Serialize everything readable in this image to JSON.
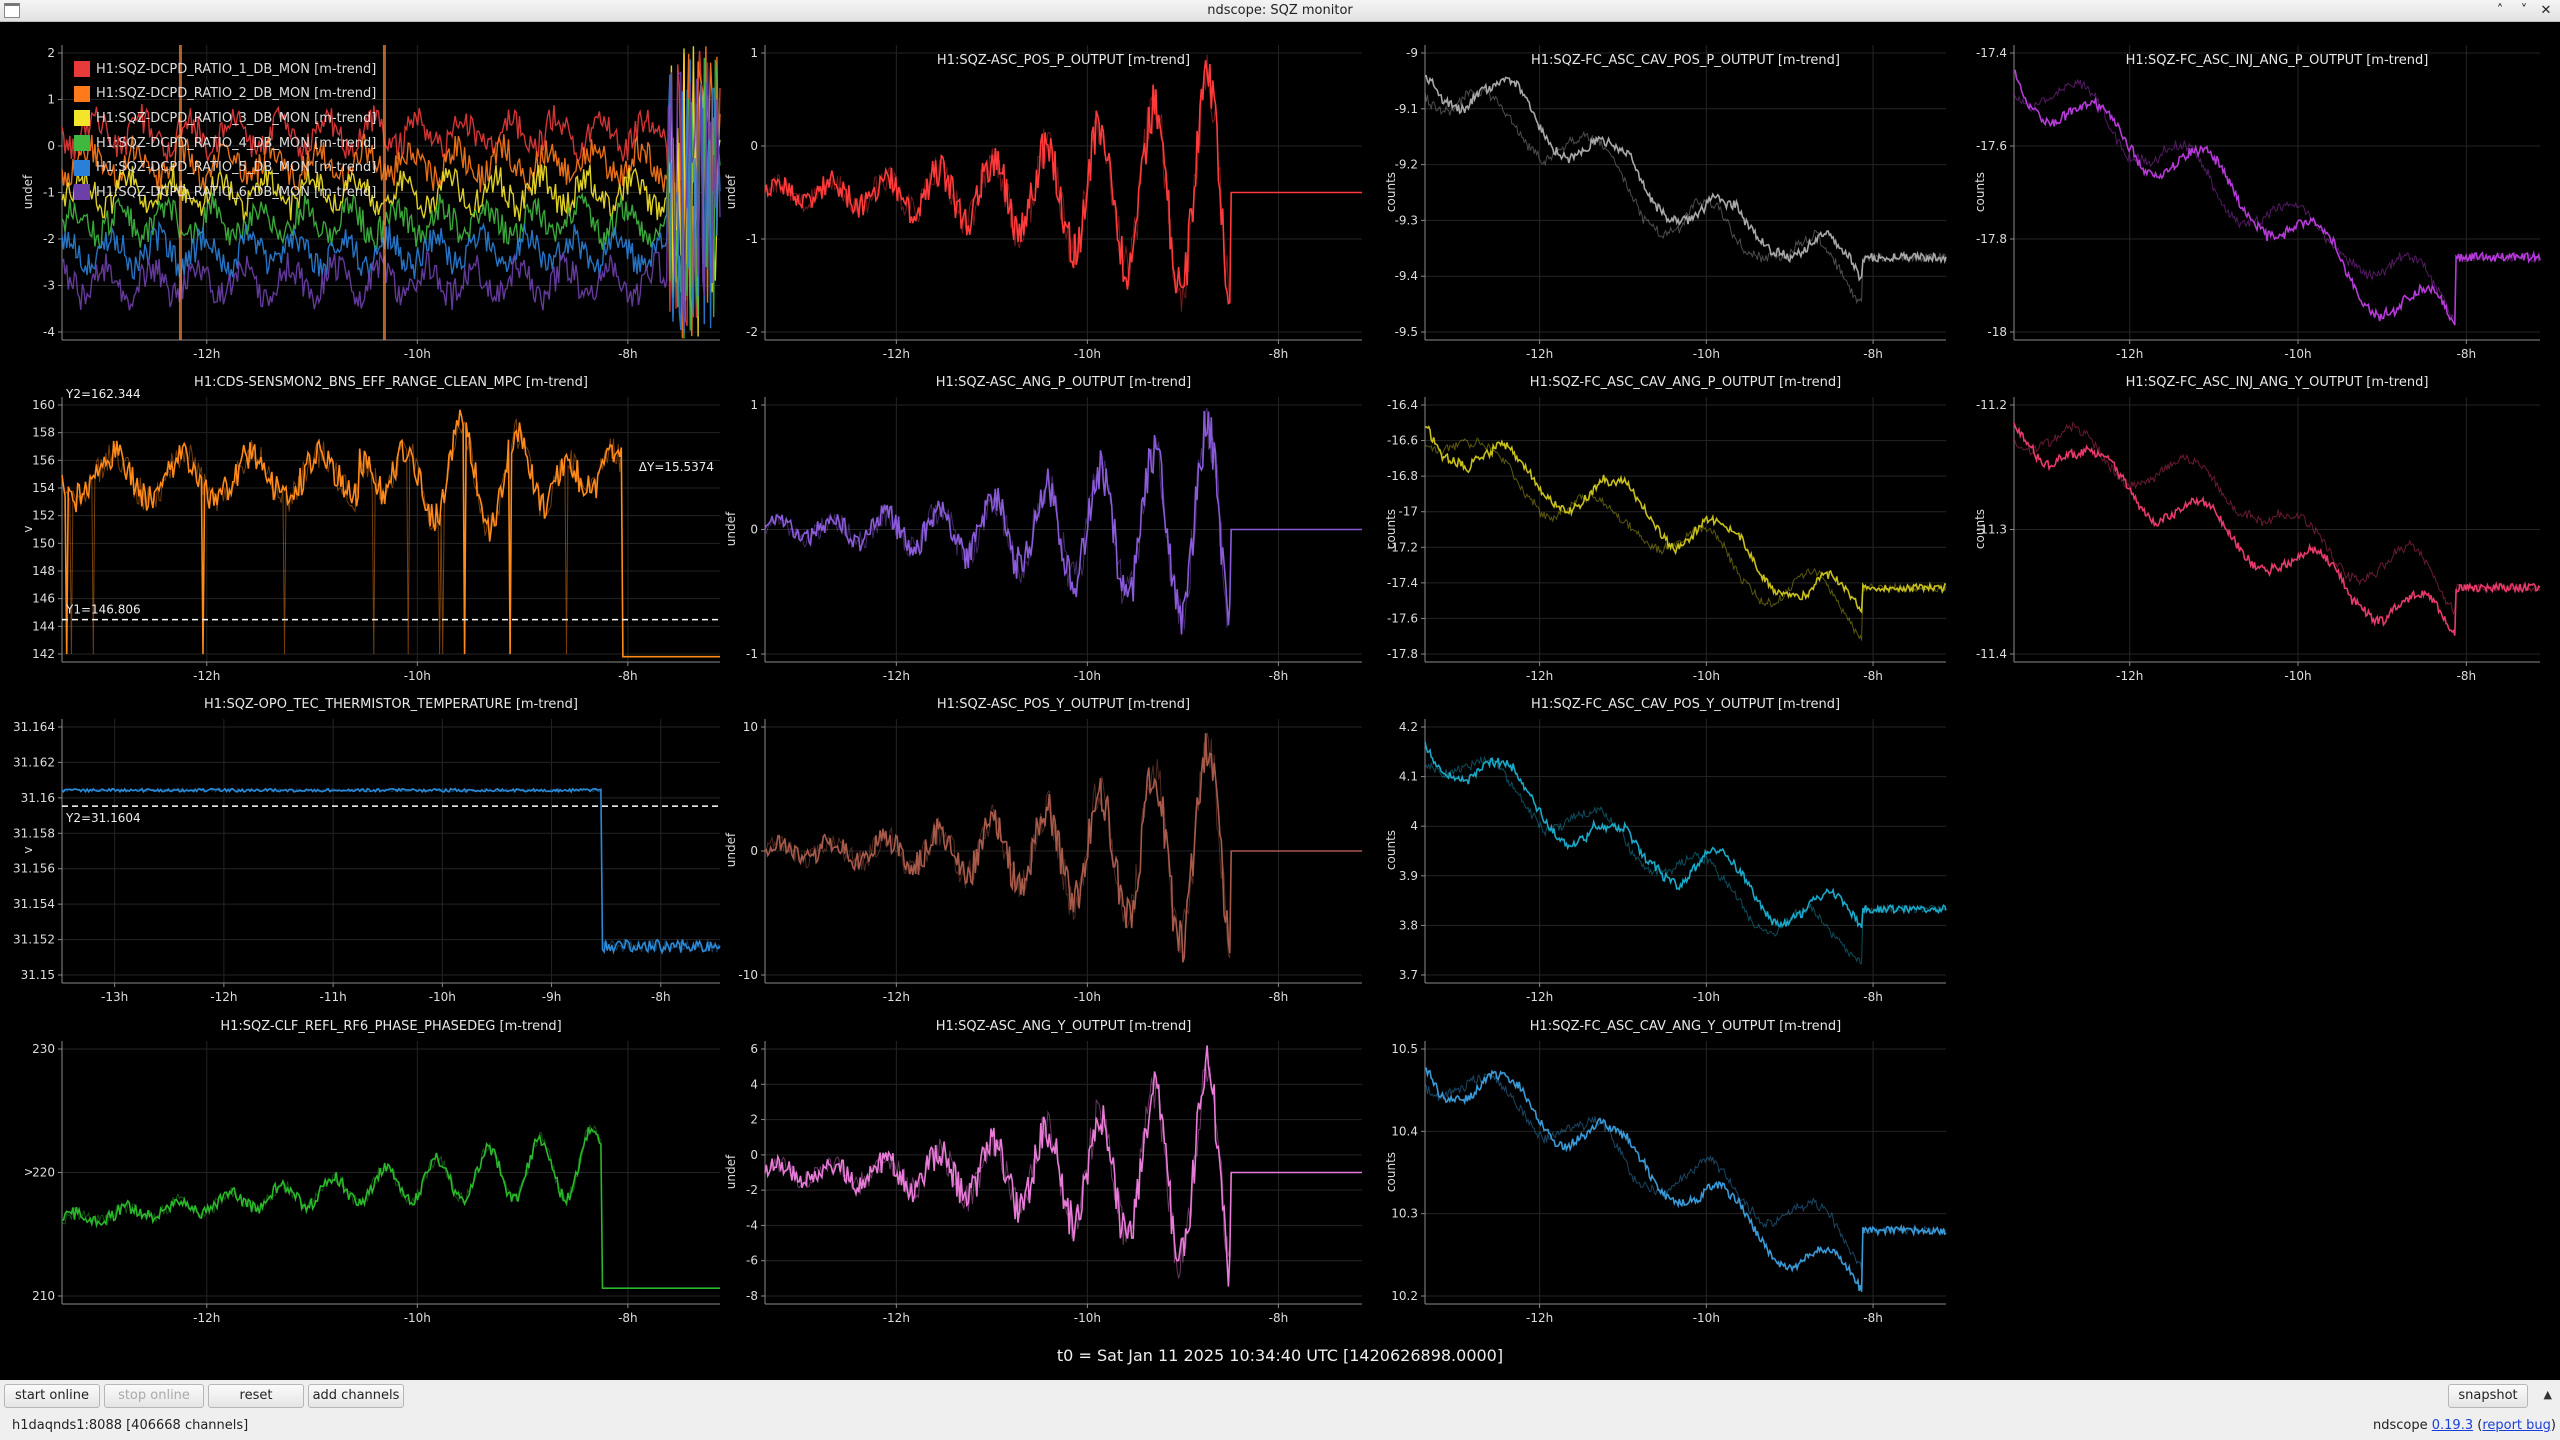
{
  "window": {
    "title": "ndscope: SQZ monitor",
    "buttons": [
      "˄",
      "˅",
      "✕"
    ]
  },
  "t0_label": "t0 = Sat Jan 11 2025 10:34:40 UTC [1420626898.0000]",
  "colors": {
    "background": "#000000",
    "grid": "#242424",
    "axis": "#8a8a8a",
    "tick_text": "#dddddd"
  },
  "legend": [
    {
      "label": "H1:SQZ-DCPD_RATIO_1_DB_MON [m-trend]",
      "color": "#e83a3a"
    },
    {
      "label": "H1:SQZ-DCPD_RATIO_2_DB_MON [m-trend]",
      "color": "#ff7a1a"
    },
    {
      "label": "H1:SQZ-DCPD_RATIO_3_DB_MON [m-trend]",
      "color": "#f5e52a"
    },
    {
      "label": "H1:SQZ-DCPD_RATIO_4_DB_MON [m-trend]",
      "color": "#3fb83f"
    },
    {
      "label": "H1:SQZ-DCPD_RATIO_5_DB_MON [m-trend]",
      "color": "#2a7fd8"
    },
    {
      "label": "H1:SQZ-DCPD_RATIO_6_DB_MON [m-trend]",
      "color": "#6d3fa8"
    }
  ],
  "plots": [
    {
      "id": "p00",
      "title": "",
      "ylabel": "undef",
      "color": "#e83a3a",
      "kind": "multi",
      "yticks": [
        "2",
        "1",
        "0",
        "-1",
        "-2",
        "-3",
        "-4"
      ],
      "xticks": [
        "-12h",
        "-10h",
        "-8h"
      ]
    },
    {
      "id": "p01",
      "title": "H1:SQZ-ASC_POS_P_OUTPUT [m-trend]",
      "ylabel": "undef",
      "color": "#ff3a3a",
      "kind": "growosc",
      "yticks": [
        "1",
        "0",
        "-1",
        "-2"
      ],
      "xticks": [
        "-12h",
        "-10h",
        "-8h"
      ]
    },
    {
      "id": "p02",
      "title": "H1:SQZ-FC_ASC_CAV_POS_P_OUTPUT [m-trend]",
      "ylabel": "counts",
      "color": "#a8a8a8",
      "kind": "drift",
      "yticks": [
        "-9",
        "-9.1",
        "-9.2",
        "-9.3",
        "-9.4",
        "-9.5"
      ],
      "xticks": [
        "-12h",
        "-10h",
        "-8h"
      ]
    },
    {
      "id": "p03",
      "title": "H1:SQZ-FC_ASC_INJ_ANG_P_OUTPUT [m-trend]",
      "ylabel": "counts",
      "color": "#b63ad8",
      "kind": "drift",
      "yticks": [
        "-17.4",
        "-17.6",
        "-17.8",
        "-18"
      ],
      "xticks": [
        "-12h",
        "-10h",
        "-8h"
      ]
    },
    {
      "id": "p10",
      "title": "H1:CDS-SENSMON2_BNS_EFF_RANGE_CLEAN_MPC [m-trend]",
      "ylabel": "v",
      "color": "#ff8a1a",
      "kind": "range",
      "yticks": [
        "160",
        "158",
        "156",
        "154",
        "152",
        "150",
        "148",
        "146",
        "144",
        "142"
      ],
      "xticks": [
        "-12h",
        "-10h",
        "-8h"
      ],
      "annot": {
        "y1": "Y1=146.806",
        "y2": "Y2=162.344",
        "dy": "ΔY=15.5374"
      }
    },
    {
      "id": "p11",
      "title": "H1:SQZ-ASC_ANG_P_OUTPUT [m-trend]",
      "ylabel": "undef",
      "color": "#8a5ad8",
      "kind": "growosc",
      "yticks": [
        "1",
        "0",
        "-1"
      ],
      "xticks": [
        "-12h",
        "-10h",
        "-8h"
      ]
    },
    {
      "id": "p12",
      "title": "H1:SQZ-FC_ASC_CAV_ANG_P_OUTPUT [m-trend]",
      "ylabel": "counts",
      "color": "#c8c01a",
      "kind": "drift",
      "yticks": [
        "-16.4",
        "-16.6",
        "-16.8",
        "-17",
        "-17.2",
        "-17.4",
        "-17.6",
        "-17.8"
      ],
      "xticks": [
        "-12h",
        "-10h",
        "-8h"
      ]
    },
    {
      "id": "p13",
      "title": "H1:SQZ-FC_ASC_INJ_ANG_Y_OUTPUT [m-trend]",
      "ylabel": "counts",
      "color": "#e83a6a",
      "kind": "drift",
      "yticks": [
        "-11.2",
        "-11.3",
        "-11.4"
      ],
      "xticks": [
        "-12h",
        "-10h",
        "-8h"
      ]
    },
    {
      "id": "p20",
      "title": "H1:SQZ-OPO_TEC_THERMISTOR_TEMPERATURE [m-trend]",
      "ylabel": "v",
      "color": "#2a8ad8",
      "kind": "step",
      "yticks": [
        "31.164",
        "31.162",
        "31.16",
        "31.158",
        "31.156",
        "31.154",
        "31.152",
        "31.15"
      ],
      "xticks": [
        "-13h",
        "-12h",
        "-11h",
        "-10h",
        "-9h",
        "-8h"
      ],
      "annot": {
        "y2": "Y2=31.1604"
      }
    },
    {
      "id": "p21",
      "title": "H1:SQZ-ASC_POS_Y_OUTPUT [m-trend]",
      "ylabel": "undef",
      "color": "#a85a4a",
      "kind": "growosc",
      "yticks": [
        "10",
        "0",
        "-10"
      ],
      "xticks": [
        "-12h",
        "-10h",
        "-8h"
      ]
    },
    {
      "id": "p22",
      "title": "H1:SQZ-FC_ASC_CAV_POS_Y_OUTPUT [m-trend]",
      "ylabel": "counts",
      "color": "#1aa8c8",
      "kind": "drift",
      "yticks": [
        "4.2",
        "4.1",
        "4",
        "3.9",
        "3.8",
        "3.7"
      ],
      "xticks": [
        "-12h",
        "-10h",
        "-8h"
      ]
    },
    {
      "id": "p30",
      "title": "H1:SQZ-CLF_REFL_RF6_PHASE_PHASEDEG [m-trend]",
      "ylabel": "v",
      "color": "#2ab82a",
      "kind": "growup",
      "yticks": [
        "230",
        "220",
        "210"
      ],
      "xticks": [
        "-12h",
        "-10h",
        "-8h"
      ]
    },
    {
      "id": "p31",
      "title": "H1:SQZ-ASC_ANG_Y_OUTPUT [m-trend]",
      "ylabel": "undef",
      "color": "#e87ad8",
      "kind": "growosc",
      "yticks": [
        "6",
        "4",
        "2",
        "0",
        "-2",
        "-4",
        "-6",
        "-8"
      ],
      "xticks": [
        "-12h",
        "-10h",
        "-8h"
      ]
    },
    {
      "id": "p32",
      "title": "H1:SQZ-FC_ASC_CAV_ANG_Y_OUTPUT [m-trend]",
      "ylabel": "counts",
      "color": "#3a9ad8",
      "kind": "drift",
      "yticks": [
        "10.5",
        "10.4",
        "10.3",
        "10.2"
      ],
      "xticks": [
        "-12h",
        "-10h",
        "-8h"
      ]
    }
  ],
  "toolbar": {
    "start_online": "start online",
    "stop_online": "stop online",
    "reset": "reset",
    "add_channels": "add channels",
    "snapshot": "snapshot",
    "scroll_up": "▲"
  },
  "status": "h1daqnds1:8088  [406668 channels]",
  "version": {
    "prefix": "ndscope",
    "version": "0.19.3",
    "report": "report bug"
  }
}
